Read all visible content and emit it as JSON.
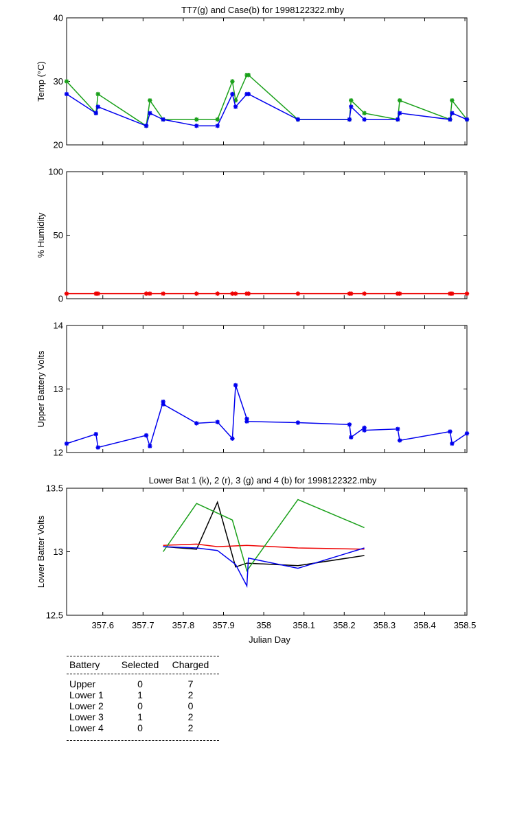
{
  "chart_data": [
    {
      "type": "line",
      "title": "TT7(g) and Case(b) for 1998122322.mby",
      "xlabel": "",
      "ylabel": "Temp  (°C)",
      "xlim": [
        357.51,
        358.505
      ],
      "ylim": [
        20,
        40
      ],
      "yticks": [
        20,
        30,
        40
      ],
      "xticks": [],
      "series": [
        {
          "color": "#1aa01a",
          "marker": "*",
          "x": [
            357.51,
            357.583,
            357.588,
            357.708,
            357.717,
            357.75,
            357.833,
            357.885,
            357.922,
            357.93,
            357.958,
            357.962,
            358.085,
            358.213,
            358.217,
            358.25,
            358.333,
            358.338,
            358.463,
            358.468,
            358.505
          ],
          "y": [
            30,
            25,
            28,
            23,
            27,
            24,
            24,
            24,
            30,
            27,
            31,
            31,
            24,
            24,
            27,
            25,
            24,
            27,
            24,
            27,
            24
          ]
        },
        {
          "color": "#0000ee",
          "marker": "*",
          "x": [
            357.51,
            357.583,
            357.588,
            357.708,
            357.717,
            357.75,
            357.833,
            357.885,
            357.922,
            357.93,
            357.958,
            357.962,
            358.085,
            358.213,
            358.217,
            358.25,
            358.333,
            358.338,
            358.463,
            358.468,
            358.505
          ],
          "y": [
            28,
            25,
            26,
            23,
            25,
            24,
            23,
            23,
            28,
            26,
            28,
            28,
            24,
            24,
            26,
            24,
            24,
            25,
            24,
            25,
            24
          ]
        }
      ]
    },
    {
      "type": "line",
      "title": "",
      "xlabel": "",
      "ylabel": "% Humidity",
      "xlim": [
        357.51,
        358.505
      ],
      "ylim": [
        0,
        100
      ],
      "yticks": [
        0,
        50,
        100
      ],
      "xticks": [],
      "series": [
        {
          "color": "#ee0000",
          "marker": "*",
          "x": [
            357.51,
            357.583,
            357.588,
            357.708,
            357.717,
            357.75,
            357.833,
            357.885,
            357.922,
            357.93,
            357.958,
            357.962,
            358.085,
            358.213,
            358.217,
            358.25,
            358.333,
            358.338,
            358.463,
            358.468,
            358.505
          ],
          "y": [
            4,
            4,
            4,
            4,
            4,
            4,
            4,
            4,
            4,
            4,
            4,
            4,
            4,
            4,
            4,
            4,
            4,
            4,
            4,
            4,
            4
          ]
        }
      ]
    },
    {
      "type": "line",
      "title": "",
      "xlabel": "",
      "ylabel": "Upper Battery Volts",
      "xlim": [
        357.51,
        358.505
      ],
      "ylim": [
        12,
        14
      ],
      "yticks": [
        12,
        13,
        14
      ],
      "xticks": [],
      "series": [
        {
          "color": "#0000ee",
          "marker": "*",
          "x": [
            357.51,
            357.583,
            357.588,
            357.708,
            357.717,
            357.75,
            357.75,
            357.833,
            357.885,
            357.922,
            357.93,
            357.958,
            357.958,
            358.085,
            358.213,
            358.217,
            358.25,
            358.25,
            358.333,
            358.338,
            358.463,
            358.468,
            358.505
          ],
          "y": [
            12.14,
            12.29,
            12.08,
            12.27,
            12.1,
            12.8,
            12.76,
            12.46,
            12.48,
            12.22,
            13.06,
            12.53,
            12.49,
            12.47,
            12.44,
            12.24,
            12.39,
            12.35,
            12.37,
            12.19,
            12.33,
            12.14,
            12.3
          ]
        }
      ]
    },
    {
      "type": "line",
      "title": "Lower Bat 1 (k), 2 (r), 3 (g) and 4 (b) for 1998122322.mby",
      "xlabel": "Julian Day",
      "ylabel": "Lower Batter Volts",
      "xlim": [
        357.51,
        358.505
      ],
      "ylim": [
        12.5,
        13.5
      ],
      "yticks": [
        12.5,
        13,
        13.5
      ],
      "yticklabels": [
        "12.5",
        "13",
        "13.5"
      ],
      "xticks": [
        357.6,
        357.7,
        357.8,
        357.9,
        358,
        358.1,
        358.2,
        358.3,
        358.4,
        358.5
      ],
      "xticklabels": [
        "357.6",
        "357.7",
        "357.8",
        "357.9",
        "358",
        "358.1",
        "358.2",
        "358.3",
        "358.4",
        "358.5"
      ],
      "series": [
        {
          "color": "#000000",
          "marker": "",
          "x": [
            357.75,
            357.833,
            357.885,
            357.93,
            357.958,
            358.085,
            358.25
          ],
          "y": [
            13.04,
            13.02,
            13.39,
            12.88,
            12.91,
            12.89,
            12.97
          ]
        },
        {
          "color": "#ee0000",
          "marker": "",
          "x": [
            357.75,
            357.833,
            357.885,
            357.958,
            358.085,
            358.25
          ],
          "y": [
            13.05,
            13.06,
            13.04,
            13.05,
            13.03,
            13.02
          ]
        },
        {
          "color": "#1aa01a",
          "marker": "",
          "x": [
            357.75,
            357.833,
            357.922,
            357.958,
            358.085,
            358.25
          ],
          "y": [
            13.0,
            13.38,
            13.25,
            12.85,
            13.41,
            13.19
          ]
        },
        {
          "color": "#0000ee",
          "marker": "",
          "x": [
            357.75,
            357.833,
            357.885,
            357.93,
            357.958,
            357.962,
            358.085,
            358.25
          ],
          "y": [
            13.04,
            13.03,
            13.01,
            12.9,
            12.73,
            12.95,
            12.87,
            13.03
          ]
        }
      ]
    }
  ],
  "battery_table": {
    "headers": [
      "Battery",
      "Selected",
      "Charged"
    ],
    "rows": [
      [
        "Upper",
        "0",
        "7"
      ],
      [
        "Lower 1",
        "1",
        "2"
      ],
      [
        "Lower 2",
        "0",
        "0"
      ],
      [
        "Lower 3",
        "1",
        "2"
      ],
      [
        "Lower 4",
        "0",
        "2"
      ]
    ]
  }
}
